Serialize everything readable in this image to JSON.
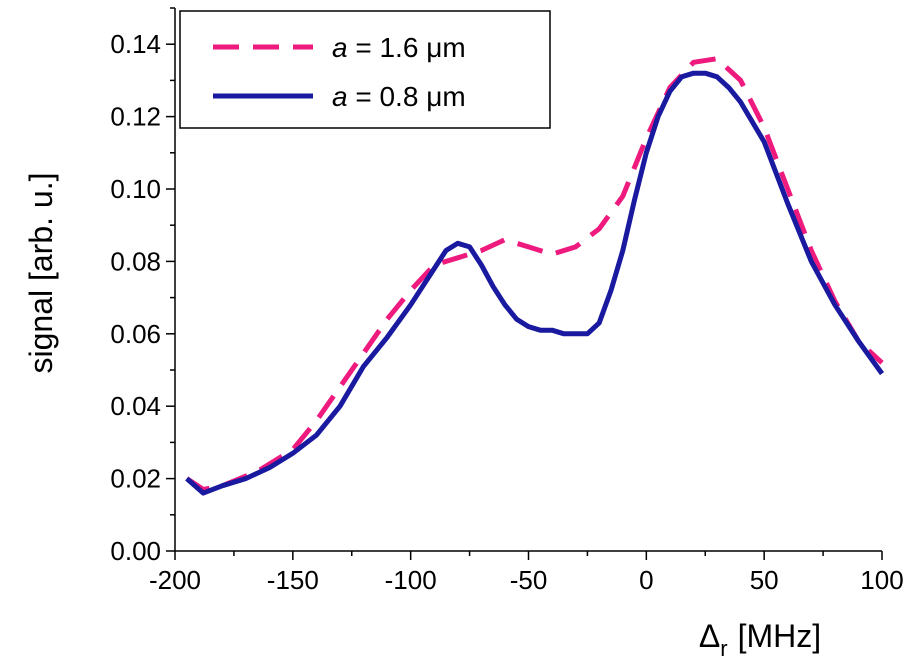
{
  "chart_data": {
    "type": "line",
    "xlabel_symbol": "Δ",
    "xlabel_subscript": "r",
    "xlabel_unit": "[MHz]",
    "ylabel": "signal [arb. u.]",
    "xlim": [
      -200,
      100
    ],
    "ylim": [
      0.0,
      0.15
    ],
    "xticks": [
      -200,
      -150,
      -100,
      -50,
      0,
      50,
      100
    ],
    "xtick_labels": [
      "-200",
      "-150",
      "-100",
      "-50",
      "0",
      "50",
      "100"
    ],
    "yticks": [
      0.0,
      0.02,
      0.04,
      0.06,
      0.08,
      0.1,
      0.12,
      0.14
    ],
    "ytick_labels": [
      "0.00",
      "0.02",
      "0.04",
      "0.06",
      "0.08",
      "0.10",
      "0.12",
      "0.14"
    ],
    "grid": false,
    "legend": "top-left",
    "series": [
      {
        "name_var": "a",
        "name_rest": " = 1.6 μm",
        "color": "#ee1a7e",
        "style": "dashed",
        "x": [
          -195,
          -188,
          -180,
          -165,
          -150,
          -140,
          -125,
          -110,
          -100,
          -90,
          -80,
          -70,
          -60,
          -50,
          -40,
          -30,
          -20,
          -10,
          0,
          10,
          20,
          30,
          40,
          50,
          60,
          70,
          80,
          90,
          100
        ],
        "y": [
          0.02,
          0.017,
          0.018,
          0.022,
          0.028,
          0.036,
          0.05,
          0.064,
          0.072,
          0.079,
          0.081,
          0.083,
          0.086,
          0.084,
          0.082,
          0.084,
          0.089,
          0.098,
          0.114,
          0.128,
          0.135,
          0.136,
          0.13,
          0.117,
          0.1,
          0.083,
          0.069,
          0.058,
          0.052
        ]
      },
      {
        "name_var": "a",
        "name_rest": " = 0.8 μm",
        "color": "#1a1aa0",
        "style": "solid",
        "x": [
          -195,
          -188,
          -180,
          -170,
          -160,
          -150,
          -140,
          -130,
          -120,
          -110,
          -100,
          -90,
          -85,
          -80,
          -75,
          -70,
          -65,
          -60,
          -55,
          -50,
          -45,
          -40,
          -35,
          -30,
          -25,
          -20,
          -15,
          -10,
          -5,
          0,
          5,
          10,
          15,
          20,
          25,
          30,
          35,
          40,
          50,
          60,
          70,
          80,
          90,
          100
        ],
        "y": [
          0.02,
          0.016,
          0.018,
          0.02,
          0.023,
          0.027,
          0.032,
          0.04,
          0.051,
          0.059,
          0.068,
          0.078,
          0.083,
          0.085,
          0.084,
          0.079,
          0.073,
          0.068,
          0.064,
          0.062,
          0.061,
          0.061,
          0.06,
          0.06,
          0.06,
          0.063,
          0.072,
          0.083,
          0.097,
          0.11,
          0.12,
          0.127,
          0.131,
          0.132,
          0.132,
          0.131,
          0.128,
          0.124,
          0.113,
          0.096,
          0.08,
          0.068,
          0.058,
          0.049
        ]
      }
    ]
  }
}
